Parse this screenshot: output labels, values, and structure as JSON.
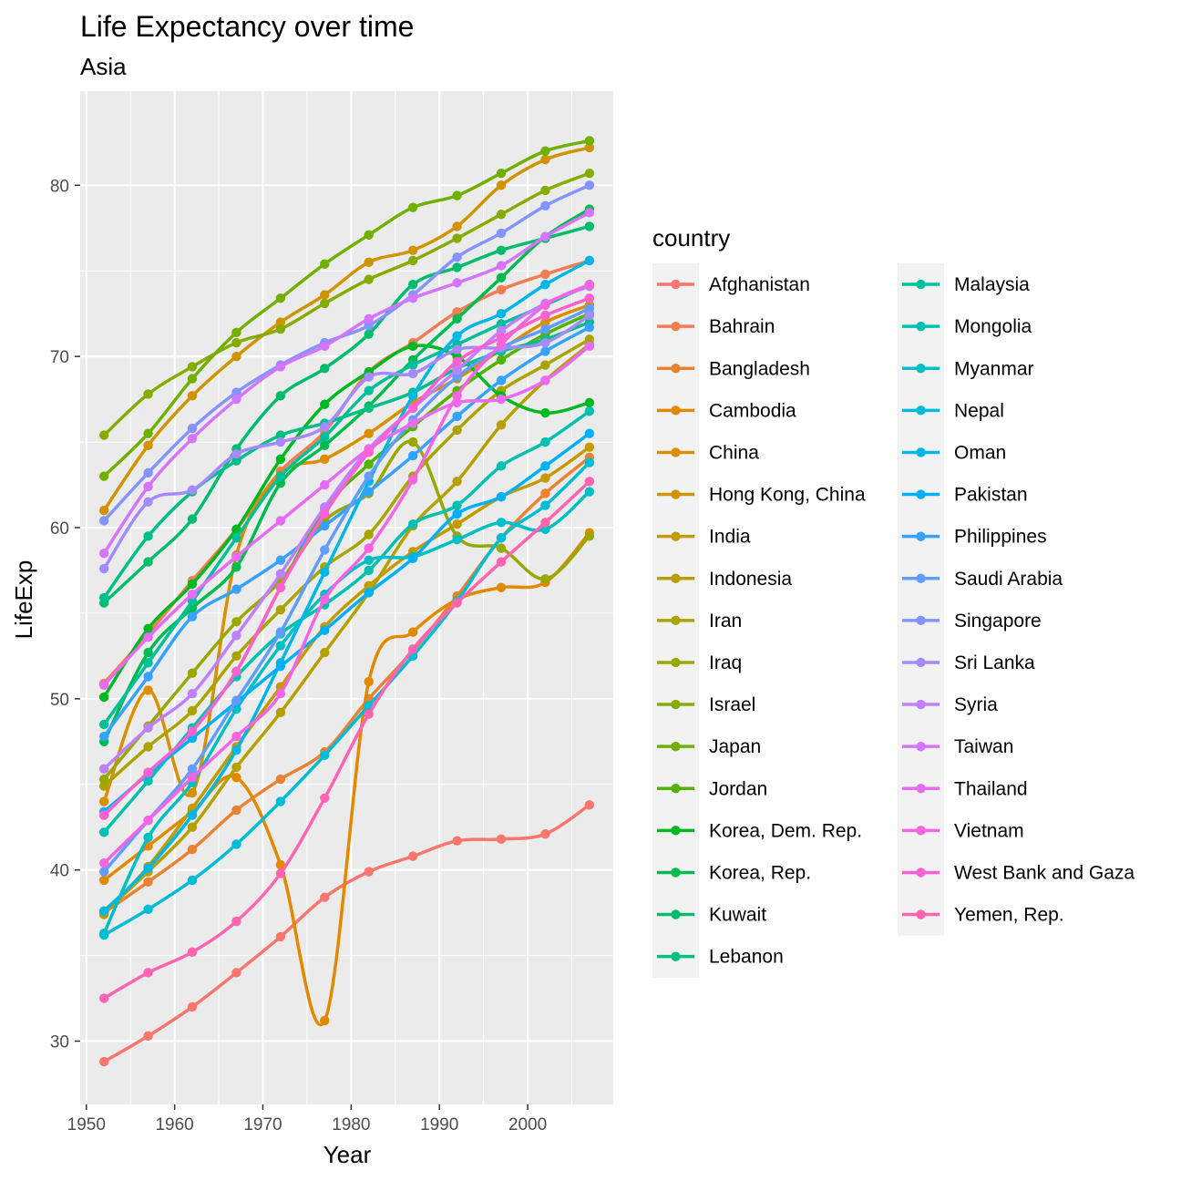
{
  "chart_data": {
    "type": "line",
    "title": "Life Expectancy over time",
    "subtitle": "Asia",
    "xlabel": "Year",
    "ylabel": "LifeExp",
    "xlim": [
      1949.3,
      2009.7
    ],
    "ylim": [
      26.3,
      85.5
    ],
    "x_ticks": [
      1950,
      1960,
      1970,
      1980,
      1990,
      2000
    ],
    "y_ticks": [
      30,
      40,
      50,
      60,
      70,
      80
    ],
    "grid": true,
    "panel_background": "#ebebeb",
    "legend_title": "country",
    "legend_position": "right",
    "x": [
      1952,
      1957,
      1962,
      1967,
      1972,
      1977,
      1982,
      1987,
      1992,
      1997,
      2002,
      2007
    ],
    "series": [
      {
        "name": "Afghanistan",
        "color": "#F8766D",
        "values": [
          28.8,
          30.3,
          32.0,
          34.0,
          36.1,
          38.4,
          39.9,
          40.8,
          41.7,
          41.8,
          42.1,
          43.8
        ]
      },
      {
        "name": "Bahrain",
        "color": "#F27D52",
        "values": [
          50.9,
          53.8,
          56.9,
          59.9,
          63.3,
          65.6,
          69.1,
          70.8,
          72.6,
          73.9,
          74.8,
          75.6
        ]
      },
      {
        "name": "Bangladesh",
        "color": "#EA8331",
        "values": [
          37.5,
          39.3,
          41.2,
          43.5,
          45.3,
          46.9,
          50.0,
          52.8,
          56.0,
          59.4,
          62.0,
          64.1
        ]
      },
      {
        "name": "Cambodia",
        "color": "#E38900",
        "values": [
          39.4,
          41.4,
          43.4,
          45.4,
          40.3,
          31.2,
          51.0,
          53.9,
          55.8,
          56.5,
          56.8,
          59.7
        ]
      },
      {
        "name": "China",
        "color": "#DA8F00",
        "values": [
          44.0,
          50.5,
          44.5,
          58.4,
          63.1,
          64.0,
          65.5,
          67.3,
          68.7,
          70.4,
          72.0,
          73.0
        ]
      },
      {
        "name": "Hong Kong, China",
        "color": "#CF9400",
        "values": [
          61.0,
          64.8,
          67.7,
          70.0,
          72.0,
          73.6,
          75.5,
          76.2,
          77.6,
          80.0,
          81.5,
          82.2
        ]
      },
      {
        "name": "India",
        "color": "#C49A00",
        "values": [
          37.4,
          40.2,
          43.6,
          47.2,
          50.7,
          54.2,
          56.6,
          58.6,
          60.2,
          61.8,
          62.9,
          64.7
        ]
      },
      {
        "name": "Indonesia",
        "color": "#B79F00",
        "values": [
          37.5,
          39.9,
          42.5,
          46.0,
          49.2,
          52.7,
          56.2,
          60.1,
          62.7,
          66.0,
          68.6,
          70.7
        ]
      },
      {
        "name": "Iran",
        "color": "#A9A400",
        "values": [
          44.9,
          47.2,
          49.3,
          52.5,
          55.2,
          57.7,
          59.6,
          63.0,
          65.7,
          68.0,
          69.5,
          71.0
        ]
      },
      {
        "name": "Iraq",
        "color": "#99A800",
        "values": [
          45.3,
          48.4,
          51.5,
          54.5,
          56.9,
          60.4,
          62.0,
          65.0,
          59.5,
          58.8,
          57.0,
          59.5
        ]
      },
      {
        "name": "Israel",
        "color": "#86AC00",
        "values": [
          65.4,
          67.8,
          69.4,
          70.8,
          71.6,
          73.1,
          74.5,
          75.6,
          76.9,
          78.3,
          79.7,
          80.7
        ]
      },
      {
        "name": "Japan",
        "color": "#6FB000",
        "values": [
          63.0,
          65.5,
          68.7,
          71.4,
          73.4,
          75.4,
          77.1,
          78.7,
          79.4,
          80.7,
          82.0,
          82.6
        ]
      },
      {
        "name": "Jordan",
        "color": "#53B400",
        "values": [
          43.2,
          45.7,
          48.1,
          51.6,
          56.5,
          61.1,
          63.7,
          65.9,
          68.0,
          69.8,
          71.3,
          72.5
        ]
      },
      {
        "name": "Korea, Dem. Rep.",
        "color": "#00B81F",
        "values": [
          50.1,
          54.1,
          56.7,
          59.9,
          64.0,
          67.2,
          69.1,
          70.6,
          70.0,
          67.7,
          66.7,
          67.3
        ]
      },
      {
        "name": "Korea, Rep.",
        "color": "#00BB4E",
        "values": [
          47.5,
          52.7,
          55.3,
          57.7,
          62.6,
          64.8,
          67.1,
          69.8,
          72.2,
          74.6,
          77.0,
          78.6
        ]
      },
      {
        "name": "Kuwait",
        "color": "#00BD6D",
        "values": [
          55.6,
          58.0,
          60.5,
          64.6,
          67.7,
          69.3,
          71.3,
          74.2,
          75.2,
          76.2,
          76.9,
          77.6
        ]
      },
      {
        "name": "Lebanon",
        "color": "#00BF86",
        "values": [
          55.9,
          59.5,
          62.1,
          63.9,
          65.4,
          66.1,
          66.98,
          67.9,
          69.3,
          70.3,
          71.0,
          72.0
        ]
      },
      {
        "name": "Malaysia",
        "color": "#00C09B",
        "values": [
          48.5,
          52.1,
          55.7,
          59.4,
          63.0,
          65.3,
          68.0,
          69.5,
          70.7,
          71.9,
          73.0,
          74.2
        ]
      },
      {
        "name": "Mongolia",
        "color": "#00C0AF",
        "values": [
          42.2,
          45.2,
          48.3,
          51.3,
          53.8,
          55.5,
          57.5,
          60.2,
          61.3,
          63.6,
          65.0,
          66.8
        ]
      },
      {
        "name": "Myanmar",
        "color": "#00BFC4",
        "values": [
          36.3,
          41.9,
          45.1,
          49.4,
          53.1,
          56.1,
          58.1,
          58.3,
          59.3,
          60.3,
          59.9,
          62.1
        ]
      },
      {
        "name": "Nepal",
        "color": "#00BCD6",
        "values": [
          36.2,
          37.7,
          39.4,
          41.5,
          44.0,
          46.7,
          49.6,
          52.5,
          55.7,
          59.4,
          61.3,
          63.8
        ]
      },
      {
        "name": "Oman",
        "color": "#00B7E7",
        "values": [
          37.6,
          40.1,
          43.2,
          47.0,
          52.1,
          57.4,
          62.7,
          67.7,
          71.2,
          72.5,
          74.2,
          75.6
        ]
      },
      {
        "name": "Pakistan",
        "color": "#00B0F6",
        "values": [
          43.4,
          45.6,
          47.7,
          49.8,
          51.9,
          54.0,
          56.2,
          58.2,
          60.8,
          61.8,
          63.6,
          65.5
        ]
      },
      {
        "name": "Philippines",
        "color": "#35A2FF",
        "values": [
          47.8,
          51.3,
          54.8,
          56.4,
          58.1,
          60.1,
          62.1,
          64.2,
          66.5,
          68.6,
          70.3,
          71.7
        ]
      },
      {
        "name": "Saudi Arabia",
        "color": "#619CFF",
        "values": [
          39.9,
          42.9,
          45.9,
          49.9,
          53.9,
          58.7,
          63.0,
          66.3,
          68.8,
          70.5,
          71.6,
          72.8
        ]
      },
      {
        "name": "Singapore",
        "color": "#8494FF",
        "values": [
          60.4,
          63.2,
          65.8,
          67.9,
          69.5,
          70.8,
          71.8,
          73.6,
          75.8,
          77.2,
          78.8,
          80.0
        ]
      },
      {
        "name": "Sri Lanka",
        "color": "#A58AFF",
        "values": [
          57.6,
          61.5,
          62.2,
          64.3,
          65.0,
          65.9,
          68.8,
          69.0,
          70.4,
          70.5,
          70.8,
          72.4
        ]
      },
      {
        "name": "Syria",
        "color": "#BF80FF",
        "values": [
          45.9,
          48.3,
          50.3,
          53.7,
          57.3,
          61.2,
          64.6,
          66.97,
          69.2,
          71.5,
          73.1,
          74.1
        ]
      },
      {
        "name": "Taiwan",
        "color": "#D575FE",
        "values": [
          58.5,
          62.4,
          65.2,
          67.5,
          69.4,
          70.6,
          72.2,
          73.4,
          74.3,
          75.3,
          77.0,
          78.4
        ]
      },
      {
        "name": "Thailand",
        "color": "#E76BF3",
        "values": [
          50.8,
          53.6,
          56.1,
          58.3,
          60.4,
          62.5,
          64.6,
          66.1,
          67.3,
          67.5,
          68.6,
          70.6
        ]
      },
      {
        "name": "Vietnam",
        "color": "#F564E3",
        "values": [
          40.4,
          42.9,
          45.4,
          47.8,
          50.3,
          55.8,
          58.8,
          62.8,
          67.7,
          70.7,
          73.0,
          74.2
        ]
      },
      {
        "name": "West Bank and Gaza",
        "color": "#FD61D1",
        "values": [
          43.2,
          45.7,
          48.1,
          51.6,
          56.5,
          60.8,
          64.4,
          67.0,
          69.7,
          71.1,
          72.4,
          73.4
        ]
      },
      {
        "name": "Yemen, Rep.",
        "color": "#FF64B0",
        "values": [
          32.5,
          34.0,
          35.2,
          37.0,
          39.8,
          44.2,
          49.1,
          52.9,
          55.6,
          58.0,
          60.3,
          62.7
        ]
      }
    ]
  }
}
